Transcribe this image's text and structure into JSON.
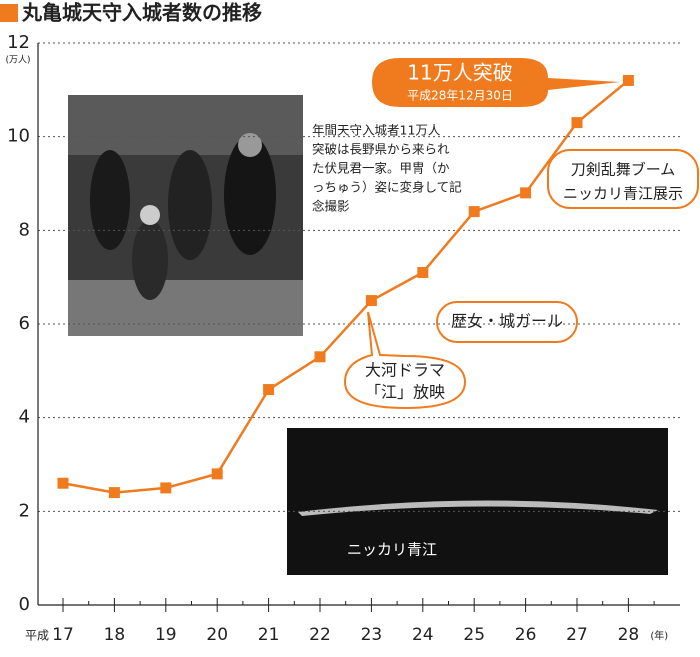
{
  "chart_data": {
    "type": "line",
    "title": "丸亀城天守入城者数の推移",
    "y_unit": "(万人)",
    "era_label": "平成",
    "x_unit": "(年)",
    "categories": [
      "17",
      "18",
      "19",
      "20",
      "21",
      "22",
      "23",
      "24",
      "25",
      "26",
      "27",
      "28"
    ],
    "series": [
      {
        "name": "入城者数",
        "color": "#f07a1e",
        "values": [
          2.6,
          2.4,
          2.5,
          2.8,
          4.6,
          5.3,
          6.5,
          7.1,
          8.4,
          8.8,
          10.3,
          11.2
        ]
      }
    ],
    "ylim": [
      0,
      12
    ],
    "yticks": [
      0,
      2,
      4,
      6,
      8,
      10,
      12
    ],
    "grid": true,
    "annotations": {
      "milestone": {
        "main": "11万人突破",
        "date": "平成28年12月30日"
      },
      "touken": [
        "刀剣乱舞ブーム",
        "ニッカリ青江展示"
      ],
      "rekijo": "歴女・城ガール",
      "taiga": [
        "大河ドラマ",
        "「江」放映"
      ],
      "photo_caption": [
        "年間天守入城者11万人",
        "突破は長野県から来られ",
        "た伏見君一家。甲冑（か",
        "っちゅう）姿に変身して記",
        "念撮影"
      ],
      "sword_label": "ニッカリ青江"
    }
  }
}
